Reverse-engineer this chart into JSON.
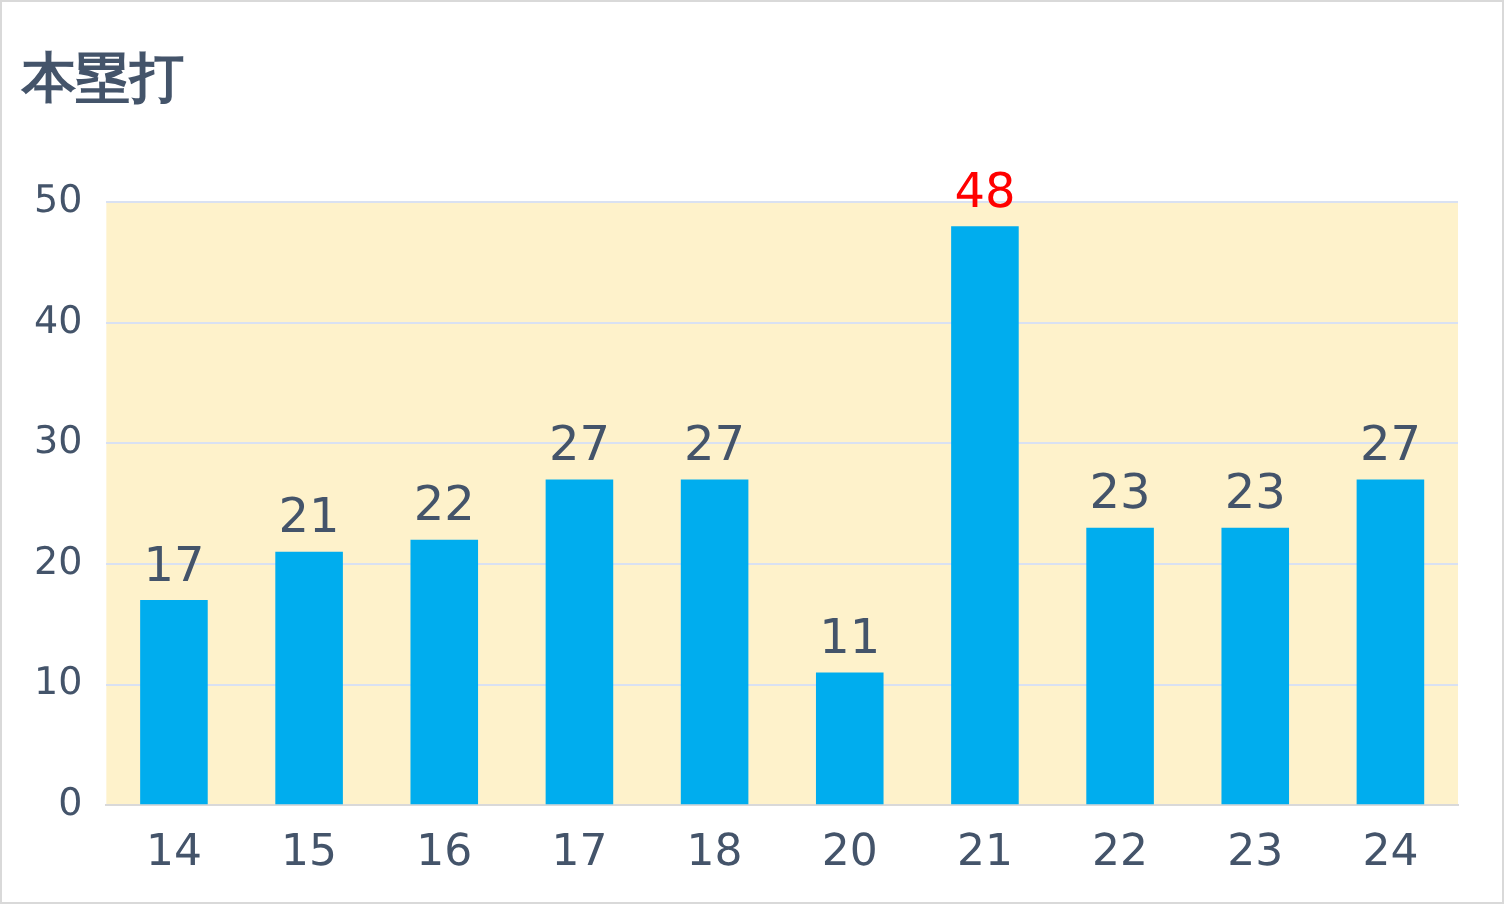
{
  "chart_data": {
    "type": "bar",
    "title": "本塁打",
    "categories": [
      "14",
      "15",
      "16",
      "17",
      "18",
      "20",
      "21",
      "22",
      "23",
      "24"
    ],
    "values": [
      17,
      21,
      22,
      27,
      27,
      11,
      48,
      23,
      23,
      27
    ],
    "color": "#00adee",
    "value_labels": [
      "17",
      "21",
      "22",
      "27",
      "27",
      "11",
      null,
      "23",
      "23",
      "27"
    ],
    "annotations": [
      {
        "text": "48",
        "x": "21",
        "y": 48
      }
    ],
    "ylim": [
      0,
      50
    ],
    "yticks": [
      0,
      10,
      20,
      30,
      40,
      50
    ],
    "grid": "y",
    "legend": false
  }
}
